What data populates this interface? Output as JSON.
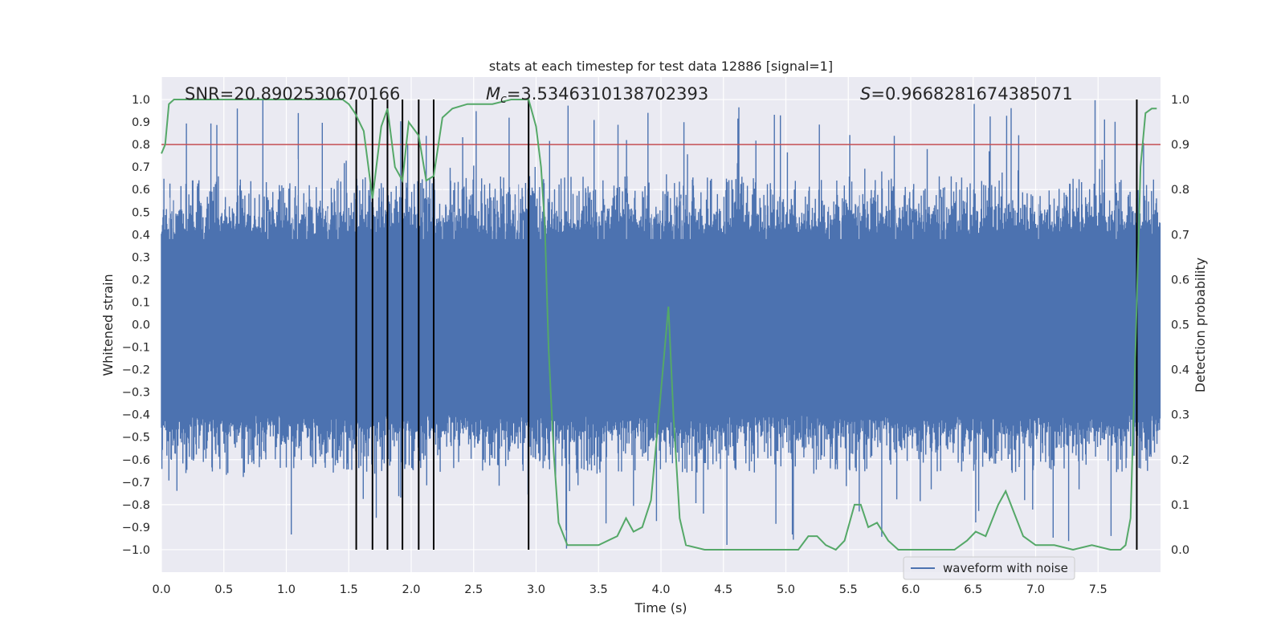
{
  "chart_data": {
    "type": "line",
    "title": "stats at each timestep for test data 12886 [signal=1]",
    "xlabel": "Time (s)",
    "ylabel_left": "Whitened strain",
    "ylabel_right": "Detection probability",
    "xlim": [
      0.0,
      8.0
    ],
    "ylim_left": [
      -1.1,
      1.1
    ],
    "ylim_right": [
      -0.05,
      1.05
    ],
    "x_ticks": [
      "0.0",
      "0.5",
      "1.0",
      "1.5",
      "2.0",
      "2.5",
      "3.0",
      "3.5",
      "4.0",
      "4.5",
      "5.0",
      "5.5",
      "6.0",
      "6.5",
      "7.0",
      "7.5"
    ],
    "x_tick_values": [
      0,
      0.5,
      1,
      1.5,
      2,
      2.5,
      3,
      3.5,
      4,
      4.5,
      5,
      5.5,
      6,
      6.5,
      7,
      7.5
    ],
    "y_left_ticks": [
      "1.0",
      "0.9",
      "0.8",
      "0.7",
      "0.6",
      "0.5",
      "0.4",
      "0.3",
      "0.2",
      "0.1",
      "0.0",
      "−0.1",
      "−0.2",
      "−0.3",
      "−0.4",
      "−0.5",
      "−0.6",
      "−0.7",
      "−0.8",
      "−0.9",
      "−1.0"
    ],
    "y_left_tick_values": [
      1.0,
      0.9,
      0.8,
      0.7,
      0.6,
      0.5,
      0.4,
      0.3,
      0.2,
      0.1,
      0.0,
      -0.1,
      -0.2,
      -0.3,
      -0.4,
      -0.5,
      -0.6,
      -0.7,
      -0.8,
      -0.9,
      -1.0
    ],
    "y_right_ticks": [
      "1.0",
      "0.9",
      "0.8",
      "0.7",
      "0.6",
      "0.5",
      "0.4",
      "0.3",
      "0.2",
      "0.1",
      "0.0"
    ],
    "y_right_tick_values": [
      1.0,
      0.9,
      0.8,
      0.7,
      0.6,
      0.5,
      0.4,
      0.3,
      0.2,
      0.1,
      0.0
    ],
    "annotations": {
      "snr": "SNR=20.8902530670166",
      "mc_symbol": "M",
      "mc_sub": "c",
      "mc_value": "=3.5346310138702393",
      "s_symbol": "S",
      "s_value": "=0.9668281674385071"
    },
    "threshold": 0.9,
    "threshold_color": "#c44e52",
    "detection_markers": [
      1.56,
      1.69,
      1.81,
      1.93,
      2.06,
      2.18,
      2.94,
      7.81
    ],
    "waveform": {
      "name": "waveform with noise",
      "color": "#4c72b0",
      "dt": 0.004,
      "seed": 12886,
      "core_amplitude": 0.4,
      "typical_peak": 0.6,
      "max_peak": 1.0
    },
    "detection_probability": {
      "name": "detection probability",
      "color": "#55a868",
      "x": [
        0.0,
        0.03,
        0.06,
        0.1,
        0.2,
        0.4,
        0.8,
        1.2,
        1.45,
        1.5,
        1.55,
        1.62,
        1.69,
        1.76,
        1.81,
        1.87,
        1.93,
        1.98,
        2.06,
        2.12,
        2.18,
        2.25,
        2.33,
        2.45,
        2.55,
        2.65,
        2.8,
        2.87,
        2.94,
        3.0,
        3.04,
        3.07,
        3.1,
        3.14,
        3.18,
        3.25,
        3.35,
        3.5,
        3.65,
        3.72,
        3.78,
        3.85,
        3.92,
        3.99,
        4.06,
        4.1,
        4.15,
        4.2,
        4.35,
        4.5,
        4.7,
        4.9,
        5.1,
        5.18,
        5.25,
        5.32,
        5.4,
        5.47,
        5.55,
        5.6,
        5.66,
        5.73,
        5.82,
        5.9,
        6.0,
        6.1,
        6.2,
        6.35,
        6.45,
        6.52,
        6.6,
        6.7,
        6.76,
        6.83,
        6.9,
        7.0,
        7.15,
        7.3,
        7.45,
        7.6,
        7.68,
        7.72,
        7.76,
        7.8,
        7.84,
        7.88,
        7.93,
        7.97
      ],
      "y": [
        0.88,
        0.9,
        0.99,
        1.0,
        1.0,
        1.0,
        1.0,
        1.0,
        1.0,
        0.99,
        0.97,
        0.93,
        0.78,
        0.94,
        0.98,
        0.85,
        0.82,
        0.95,
        0.92,
        0.82,
        0.83,
        0.96,
        0.98,
        0.99,
        0.99,
        0.99,
        1.0,
        1.0,
        1.0,
        0.94,
        0.85,
        0.72,
        0.45,
        0.22,
        0.06,
        0.01,
        0.01,
        0.01,
        0.03,
        0.07,
        0.04,
        0.05,
        0.11,
        0.32,
        0.54,
        0.3,
        0.07,
        0.01,
        0.0,
        0.0,
        0.0,
        0.0,
        0.0,
        0.03,
        0.03,
        0.01,
        0.0,
        0.02,
        0.1,
        0.1,
        0.05,
        0.06,
        0.02,
        0.0,
        0.0,
        0.0,
        0.0,
        0.0,
        0.02,
        0.04,
        0.03,
        0.1,
        0.13,
        0.08,
        0.03,
        0.01,
        0.01,
        0.0,
        0.01,
        0.0,
        0.0,
        0.01,
        0.07,
        0.45,
        0.85,
        0.97,
        0.98,
        0.98
      ]
    },
    "legend": {
      "label": "waveform with noise",
      "placement": "lower-right"
    }
  }
}
